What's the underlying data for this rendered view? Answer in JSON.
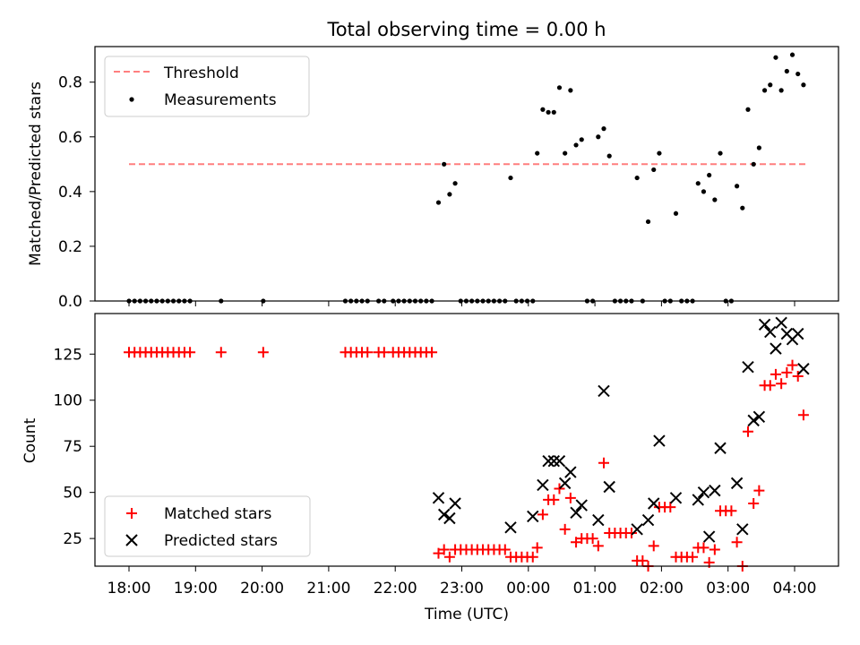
{
  "figure": {
    "title": "Total observing time = 0.00 h"
  },
  "chart_data": [
    {
      "type": "scatter",
      "ylabel": "Matched/Predicted stars",
      "xlabel": "",
      "ylim": [
        0,
        0.93
      ],
      "yticks": [
        "0.0",
        "0.2",
        "0.4",
        "0.6",
        "0.8"
      ],
      "legend": {
        "placement": "top-left",
        "entries": [
          "Threshold",
          "Measurements"
        ]
      },
      "threshold": {
        "name": "Threshold",
        "y": 0.5,
        "x_start": "18:00",
        "x_end": "04:10",
        "color": "#ff7f7f",
        "style": "dashed"
      },
      "series": [
        {
          "name": "Measurements",
          "marker": "dot",
          "color": "#000000",
          "points": [
            [
              "18:00",
              0
            ],
            [
              "18:05",
              0
            ],
            [
              "18:10",
              0
            ],
            [
              "18:15",
              0
            ],
            [
              "18:20",
              0
            ],
            [
              "18:25",
              0
            ],
            [
              "18:30",
              0
            ],
            [
              "18:35",
              0
            ],
            [
              "18:40",
              0
            ],
            [
              "18:45",
              0
            ],
            [
              "18:50",
              0
            ],
            [
              "18:55",
              0
            ],
            [
              "19:23",
              0
            ],
            [
              "20:01",
              0
            ],
            [
              "21:15",
              0
            ],
            [
              "21:20",
              0
            ],
            [
              "21:25",
              0
            ],
            [
              "21:30",
              0
            ],
            [
              "21:35",
              0
            ],
            [
              "21:45",
              0
            ],
            [
              "21:50",
              0
            ],
            [
              "21:58",
              0
            ],
            [
              "22:03",
              0
            ],
            [
              "22:08",
              0
            ],
            [
              "22:13",
              0
            ],
            [
              "22:18",
              0
            ],
            [
              "22:23",
              0
            ],
            [
              "22:28",
              0
            ],
            [
              "22:33",
              0
            ],
            [
              "22:39",
              0.36
            ],
            [
              "22:44",
              0.5
            ],
            [
              "22:49",
              0.39
            ],
            [
              "22:54",
              0.43
            ],
            [
              "22:59",
              0
            ],
            [
              "23:04",
              0
            ],
            [
              "23:09",
              0
            ],
            [
              "23:14",
              0
            ],
            [
              "23:19",
              0
            ],
            [
              "23:24",
              0
            ],
            [
              "23:29",
              0
            ],
            [
              "23:34",
              0
            ],
            [
              "23:39",
              0
            ],
            [
              "23:44",
              0.45
            ],
            [
              "23:49",
              0
            ],
            [
              "23:54",
              0
            ],
            [
              "23:59",
              0
            ],
            [
              "00:04",
              0
            ],
            [
              "00:08",
              0.54
            ],
            [
              "00:13",
              0.7
            ],
            [
              "00:18",
              0.69
            ],
            [
              "00:23",
              0.69
            ],
            [
              "00:28",
              0.78
            ],
            [
              "00:33",
              0.54
            ],
            [
              "00:38",
              0.77
            ],
            [
              "00:43",
              0.57
            ],
            [
              "00:48",
              0.59
            ],
            [
              "00:53",
              0
            ],
            [
              "00:58",
              0
            ],
            [
              "01:03",
              0.6
            ],
            [
              "01:08",
              0.63
            ],
            [
              "01:13",
              0.53
            ],
            [
              "01:18",
              0
            ],
            [
              "01:23",
              0
            ],
            [
              "01:28",
              0
            ],
            [
              "01:33",
              0
            ],
            [
              "01:38",
              0.45
            ],
            [
              "01:43",
              0
            ],
            [
              "01:48",
              0.29
            ],
            [
              "01:53",
              0.48
            ],
            [
              "01:58",
              0.54
            ],
            [
              "02:03",
              0
            ],
            [
              "02:08",
              0
            ],
            [
              "02:13",
              0.32
            ],
            [
              "02:18",
              0
            ],
            [
              "02:23",
              0
            ],
            [
              "02:28",
              0
            ],
            [
              "02:33",
              0.43
            ],
            [
              "02:38",
              0.4
            ],
            [
              "02:43",
              0.46
            ],
            [
              "02:48",
              0.37
            ],
            [
              "02:53",
              0.54
            ],
            [
              "02:58",
              0
            ],
            [
              "03:03",
              0
            ],
            [
              "03:08",
              0.42
            ],
            [
              "03:13",
              0.34
            ],
            [
              "03:18",
              0.7
            ],
            [
              "03:23",
              0.5
            ],
            [
              "03:28",
              0.56
            ],
            [
              "03:33",
              0.77
            ],
            [
              "03:38",
              0.79
            ],
            [
              "03:43",
              0.89
            ],
            [
              "03:48",
              0.77
            ],
            [
              "03:53",
              0.84
            ],
            [
              "03:58",
              0.9
            ],
            [
              "04:03",
              0.83
            ],
            [
              "04:08",
              0.79
            ]
          ]
        }
      ]
    },
    {
      "type": "scatter",
      "ylabel": "Count",
      "xlabel": "Time (UTC)",
      "ylim": [
        10,
        147
      ],
      "yticks": [
        "25",
        "50",
        "75",
        "100",
        "125"
      ],
      "xticks": [
        "18:00",
        "19:00",
        "20:00",
        "21:00",
        "22:00",
        "23:00",
        "00:00",
        "01:00",
        "02:00",
        "03:00",
        "04:00"
      ],
      "legend": {
        "placement": "bottom-left",
        "entries": [
          "Matched stars",
          "Predicted stars"
        ]
      },
      "series": [
        {
          "name": "Matched stars",
          "marker": "plus",
          "color": "#ff0000",
          "points": [
            [
              "18:00",
              126
            ],
            [
              "18:05",
              126
            ],
            [
              "18:10",
              126
            ],
            [
              "18:15",
              126
            ],
            [
              "18:20",
              126
            ],
            [
              "18:25",
              126
            ],
            [
              "18:30",
              126
            ],
            [
              "18:35",
              126
            ],
            [
              "18:40",
              126
            ],
            [
              "18:45",
              126
            ],
            [
              "18:50",
              126
            ],
            [
              "18:55",
              126
            ],
            [
              "19:23",
              126
            ],
            [
              "20:01",
              126
            ],
            [
              "21:15",
              126
            ],
            [
              "21:20",
              126
            ],
            [
              "21:25",
              126
            ],
            [
              "21:30",
              126
            ],
            [
              "21:35",
              126
            ],
            [
              "21:45",
              126
            ],
            [
              "21:50",
              126
            ],
            [
              "21:58",
              126
            ],
            [
              "22:03",
              126
            ],
            [
              "22:08",
              126
            ],
            [
              "22:13",
              126
            ],
            [
              "22:18",
              126
            ],
            [
              "22:23",
              126
            ],
            [
              "22:28",
              126
            ],
            [
              "22:33",
              126
            ],
            [
              "22:39",
              17
            ],
            [
              "22:44",
              19
            ],
            [
              "22:49",
              15
            ],
            [
              "22:54",
              19
            ],
            [
              "22:59",
              19
            ],
            [
              "23:04",
              19
            ],
            [
              "23:09",
              19
            ],
            [
              "23:14",
              19
            ],
            [
              "23:19",
              19
            ],
            [
              "23:24",
              19
            ],
            [
              "23:29",
              19
            ],
            [
              "23:34",
              19
            ],
            [
              "23:39",
              19
            ],
            [
              "23:44",
              15
            ],
            [
              "23:49",
              15
            ],
            [
              "23:54",
              15
            ],
            [
              "23:59",
              15
            ],
            [
              "00:04",
              15
            ],
            [
              "00:08",
              20
            ],
            [
              "00:13",
              38
            ],
            [
              "00:18",
              46
            ],
            [
              "00:23",
              46
            ],
            [
              "00:28",
              52
            ],
            [
              "00:33",
              30
            ],
            [
              "00:38",
              47
            ],
            [
              "00:43",
              23
            ],
            [
              "00:48",
              25
            ],
            [
              "00:53",
              25
            ],
            [
              "00:58",
              25
            ],
            [
              "01:03",
              21
            ],
            [
              "01:08",
              66
            ],
            [
              "01:13",
              28
            ],
            [
              "01:18",
              28
            ],
            [
              "01:23",
              28
            ],
            [
              "01:28",
              28
            ],
            [
              "01:33",
              28
            ],
            [
              "01:38",
              13
            ],
            [
              "01:43",
              13
            ],
            [
              "01:48",
              10
            ],
            [
              "01:53",
              21
            ],
            [
              "01:58",
              42
            ],
            [
              "02:03",
              42
            ],
            [
              "02:08",
              42
            ],
            [
              "02:13",
              15
            ],
            [
              "02:18",
              15
            ],
            [
              "02:23",
              15
            ],
            [
              "02:28",
              15
            ],
            [
              "02:33",
              20
            ],
            [
              "02:38",
              20
            ],
            [
              "02:43",
              12
            ],
            [
              "02:48",
              19
            ],
            [
              "02:53",
              40
            ],
            [
              "02:58",
              40
            ],
            [
              "03:03",
              40
            ],
            [
              "03:08",
              23
            ],
            [
              "03:13",
              10
            ],
            [
              "03:18",
              83
            ],
            [
              "03:23",
              44
            ],
            [
              "03:28",
              51
            ],
            [
              "03:33",
              108
            ],
            [
              "03:38",
              108
            ],
            [
              "03:43",
              114
            ],
            [
              "03:48",
              109
            ],
            [
              "03:53",
              115
            ],
            [
              "03:58",
              119
            ],
            [
              "04:03",
              113
            ],
            [
              "04:08",
              92
            ]
          ]
        },
        {
          "name": "Predicted stars",
          "marker": "x",
          "color": "#000000",
          "points": [
            [
              "22:39",
              47
            ],
            [
              "22:44",
              38
            ],
            [
              "22:49",
              36
            ],
            [
              "22:54",
              44
            ],
            [
              "23:44",
              31
            ],
            [
              "00:04",
              37
            ],
            [
              "00:13",
              54
            ],
            [
              "00:18",
              67
            ],
            [
              "00:23",
              67
            ],
            [
              "00:28",
              67
            ],
            [
              "00:33",
              55
            ],
            [
              "00:38",
              61
            ],
            [
              "00:43",
              39
            ],
            [
              "00:48",
              43
            ],
            [
              "01:03",
              35
            ],
            [
              "01:08",
              105
            ],
            [
              "01:13",
              53
            ],
            [
              "01:38",
              30
            ],
            [
              "01:48",
              35
            ],
            [
              "01:53",
              44
            ],
            [
              "01:58",
              78
            ],
            [
              "02:13",
              47
            ],
            [
              "02:33",
              46
            ],
            [
              "02:38",
              50
            ],
            [
              "02:43",
              26
            ],
            [
              "02:48",
              51
            ],
            [
              "02:53",
              74
            ],
            [
              "03:08",
              55
            ],
            [
              "03:13",
              30
            ],
            [
              "03:18",
              118
            ],
            [
              "03:23",
              89
            ],
            [
              "03:28",
              91
            ],
            [
              "03:33",
              141
            ],
            [
              "03:38",
              137
            ],
            [
              "03:43",
              128
            ],
            [
              "03:48",
              142
            ],
            [
              "03:53",
              136
            ],
            [
              "03:58",
              133
            ],
            [
              "04:03",
              136
            ],
            [
              "04:08",
              117
            ]
          ]
        }
      ]
    }
  ]
}
